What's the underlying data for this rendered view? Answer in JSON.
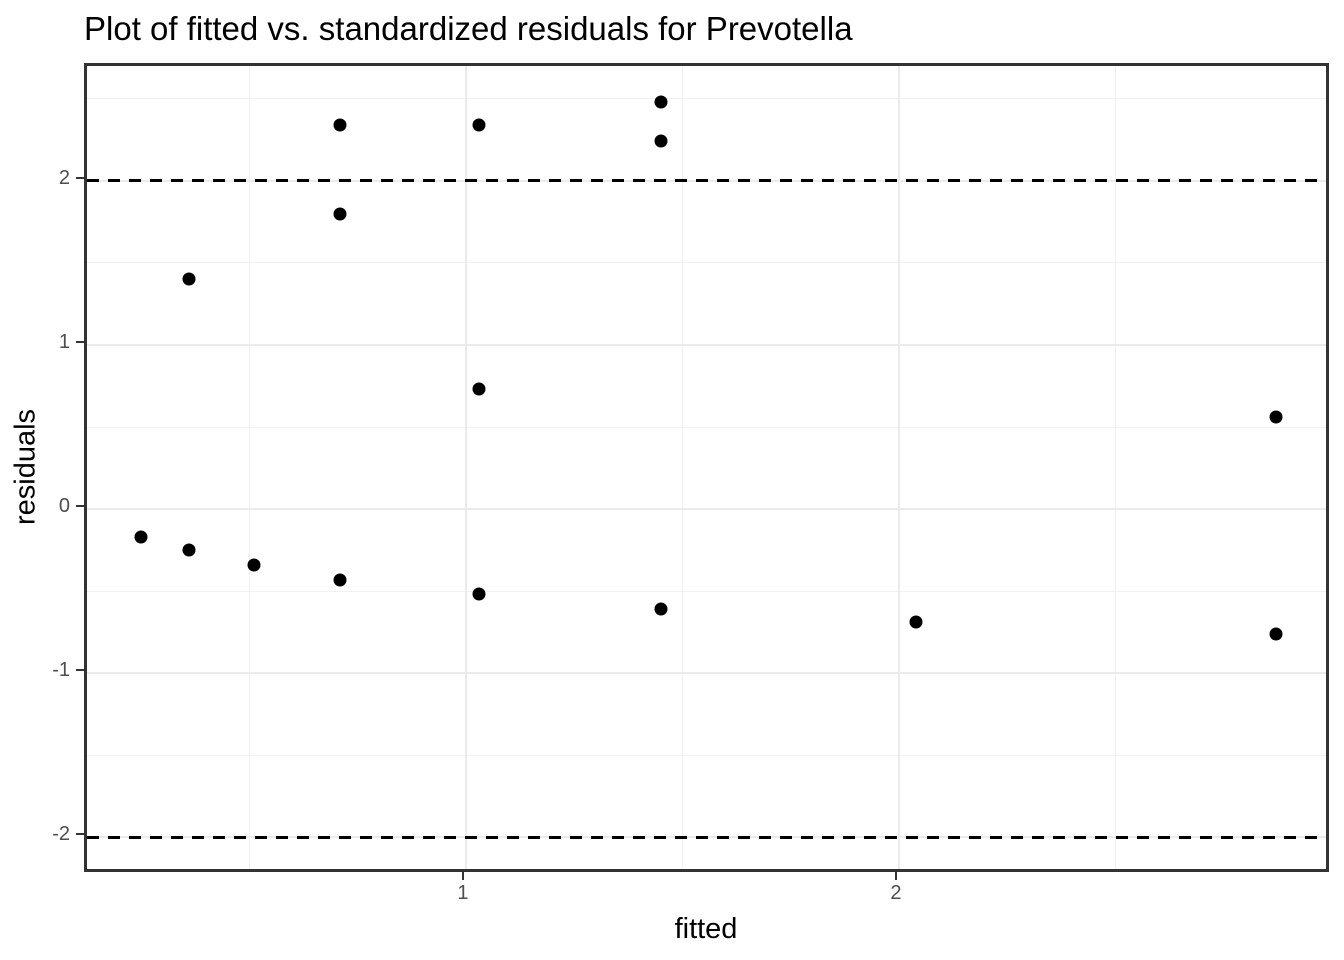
{
  "title": "Plot of fitted vs. standardized residuals for Prevotella",
  "chart_data": {
    "type": "scatter",
    "title": "Plot of fitted vs. standardized residuals for Prevotella",
    "xlabel": "fitted",
    "ylabel": "residuals",
    "xlim": [
      0.125,
      3.0
    ],
    "ylim": [
      -2.23,
      2.7
    ],
    "x_ticks": [
      1,
      2
    ],
    "y_ticks": [
      2,
      1,
      0,
      -1,
      -2
    ],
    "x_minor_ticks": [
      0.5,
      1.5,
      2.5
    ],
    "y_minor_ticks": [
      2.5,
      1.5,
      0.5,
      -0.5,
      -1.5
    ],
    "grid": true,
    "legend": false,
    "hlines": [
      {
        "y": 2,
        "style": "dashed",
        "color": "#000000"
      },
      {
        "y": -2,
        "style": "dashed",
        "color": "#000000"
      }
    ],
    "points": [
      {
        "x": 0.25,
        "y": -0.17
      },
      {
        "x": 0.36,
        "y": 1.4
      },
      {
        "x": 0.36,
        "y": -0.25
      },
      {
        "x": 0.51,
        "y": -0.34
      },
      {
        "x": 0.71,
        "y": 2.34
      },
      {
        "x": 0.71,
        "y": 1.8
      },
      {
        "x": 0.71,
        "y": -0.43
      },
      {
        "x": 1.03,
        "y": 2.34
      },
      {
        "x": 1.03,
        "y": 0.73
      },
      {
        "x": 1.03,
        "y": -0.52
      },
      {
        "x": 1.45,
        "y": 2.48
      },
      {
        "x": 1.45,
        "y": 2.24
      },
      {
        "x": 1.45,
        "y": -0.61
      },
      {
        "x": 2.04,
        "y": -0.69
      },
      {
        "x": 2.87,
        "y": 0.56
      },
      {
        "x": 2.87,
        "y": -0.76
      }
    ],
    "colors": {
      "point": "#000000",
      "panel_border": "#333333",
      "grid_major": "#ebebeb",
      "grid_minor": "#f1f1f1",
      "tick_label": "#4d4d4d",
      "background": "#ffffff"
    }
  }
}
